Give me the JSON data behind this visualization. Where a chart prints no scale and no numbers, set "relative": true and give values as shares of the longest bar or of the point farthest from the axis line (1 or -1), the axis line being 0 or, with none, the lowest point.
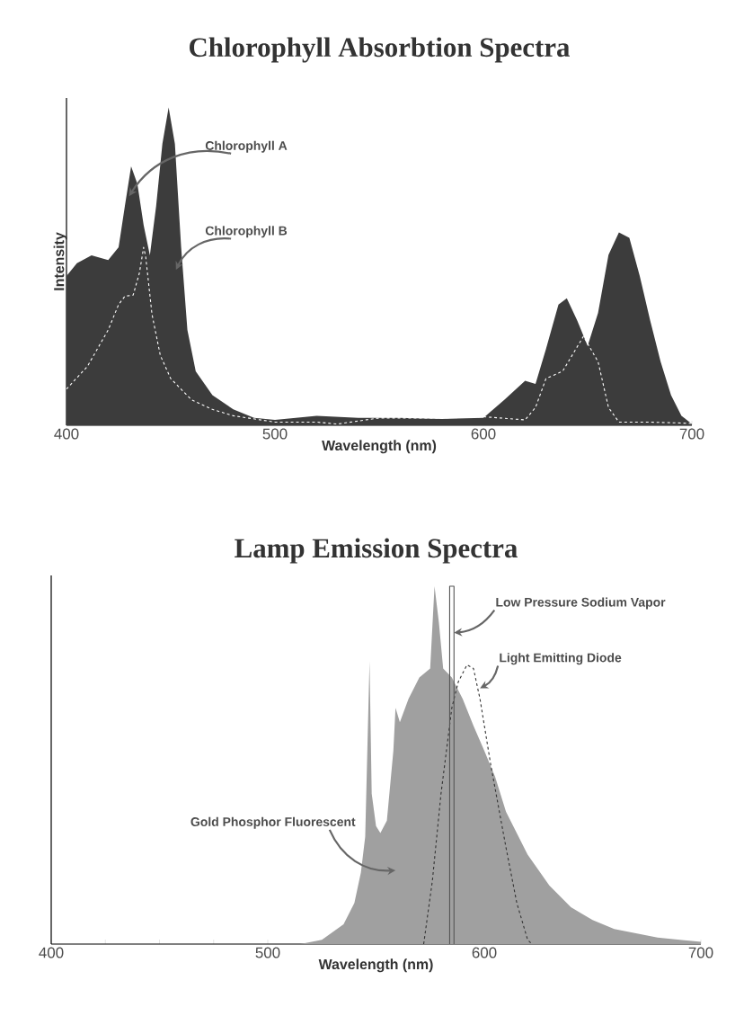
{
  "chart_data": [
    {
      "type": "area",
      "title": "Chlorophyll Absorbtion Spectra",
      "xlabel": "Wavelength (nm)",
      "ylabel": "Intensity",
      "relative": true,
      "xlim": [
        400,
        700
      ],
      "xticks": [
        400,
        500,
        600,
        700
      ],
      "series": [
        {
          "color": "#3c3c3c",
          "x": [
            400,
            405,
            412,
            420,
            425,
            428,
            431,
            434,
            437,
            440,
            443,
            446,
            449,
            452,
            455,
            458,
            462,
            470,
            480,
            490,
            500,
            520,
            540,
            560,
            580,
            600,
            610,
            620,
            625,
            630,
            636,
            640,
            645,
            650,
            655,
            660,
            665,
            670,
            675,
            680,
            685,
            690,
            695,
            700
          ],
          "values": [
            0.47,
            0.51,
            0.535,
            0.52,
            0.56,
            0.69,
            0.815,
            0.76,
            0.63,
            0.535,
            0.69,
            0.886,
            1.0,
            0.886,
            0.56,
            0.3,
            0.17,
            0.095,
            0.05,
            0.023,
            0.017,
            0.03,
            0.023,
            0.023,
            0.02,
            0.023,
            0.08,
            0.14,
            0.13,
            0.24,
            0.38,
            0.4,
            0.33,
            0.25,
            0.354,
            0.536,
            0.607,
            0.59,
            0.47,
            0.33,
            0.2,
            0.095,
            0.03,
            0.004
          ]
        },
        {
          "type": "line",
          "color": "#ffffff",
          "line_style": "dashed",
          "x": [
            400,
            410,
            420,
            425,
            428,
            432,
            435,
            437,
            438,
            441,
            445,
            450,
            460,
            470,
            480,
            490,
            500,
            520,
            530,
            550,
            580,
            600,
            620,
            625,
            630,
            638,
            648,
            655,
            660,
            665,
            680,
            700
          ],
          "values": [
            0.114,
            0.185,
            0.3,
            0.38,
            0.406,
            0.41,
            0.48,
            0.56,
            0.53,
            0.35,
            0.22,
            0.147,
            0.08,
            0.05,
            0.03,
            0.02,
            0.01,
            0.01,
            0.004,
            0.023,
            0.023,
            0.027,
            0.017,
            0.056,
            0.147,
            0.17,
            0.28,
            0.2,
            0.056,
            0.01,
            0.01,
            0.006
          ]
        }
      ],
      "annotations": [
        "Chlorophyll A",
        "Chlorophyll B"
      ]
    },
    {
      "type": "area",
      "title": "Lamp Emission Spectra",
      "xlabel": "Wavelength (nm)",
      "relative": true,
      "xlim": [
        400,
        700
      ],
      "xticks": [
        400,
        {
          "value": 425,
          "label": null
        },
        {
          "value": 450,
          "label": null
        },
        {
          "value": 475,
          "label": null
        },
        500,
        {
          "value": 525,
          "label": null
        },
        {
          "value": 550,
          "label": null
        },
        {
          "value": 575,
          "label": null
        },
        600,
        {
          "value": 625,
          "label": null
        },
        {
          "value": 650,
          "label": null
        },
        {
          "value": 675,
          "label": null
        },
        700
      ],
      "series": [
        {
          "color": "#a0a0a0",
          "x": [
            515,
            525,
            535,
            540,
            543,
            545,
            547,
            548,
            550,
            552,
            555,
            558,
            559,
            561,
            565,
            570,
            575,
            577,
            579,
            581,
            585,
            590,
            595,
            600,
            605,
            610,
            620,
            630,
            640,
            650,
            660,
            680,
            700
          ],
          "values": [
            0,
            0.012,
            0.055,
            0.115,
            0.2,
            0.3,
            0.79,
            0.42,
            0.33,
            0.31,
            0.345,
            0.54,
            0.66,
            0.62,
            0.685,
            0.745,
            0.77,
            1.0,
            0.9,
            0.77,
            0.745,
            0.685,
            0.61,
            0.54,
            0.467,
            0.37,
            0.25,
            0.164,
            0.103,
            0.067,
            0.042,
            0.018,
            0.006
          ]
        },
        {
          "type": "line",
          "color": "#333333",
          "line_style": "dashed",
          "x": [
            572,
            576,
            580,
            585,
            588,
            592,
            595,
            598,
            603,
            610,
            615,
            620,
            622
          ],
          "values": [
            0,
            0.176,
            0.42,
            0.66,
            0.733,
            0.78,
            0.77,
            0.685,
            0.5,
            0.27,
            0.115,
            0.012,
            0
          ]
        },
        {
          "type": "line",
          "color": "#555555",
          "line_style": "solid",
          "x": [
            584,
            584,
            586,
            586
          ],
          "values": [
            0,
            1.0,
            1.0,
            0
          ]
        }
      ],
      "annotations": [
        {
          "text": "Low Pressure Sodium Vapor",
          "x": 586,
          "y": 0.87
        },
        {
          "text": "Light Emitting Diode",
          "x": 598,
          "y": 0.715
        },
        "Gold Phosphor Fluorescent"
      ]
    }
  ]
}
